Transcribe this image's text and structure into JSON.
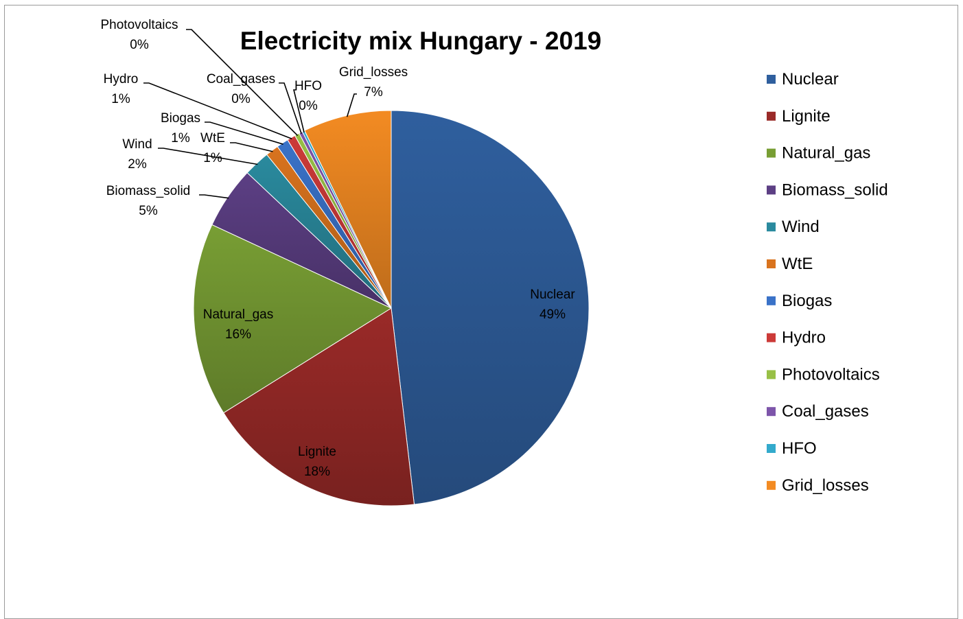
{
  "chart_data": {
    "type": "pie",
    "title": "Electricity mix Hungary - 2019",
    "legend_position": "right",
    "slices": [
      {
        "name": "Nuclear",
        "value": 49.3,
        "label": "49%",
        "color": "#2f5f9e"
      },
      {
        "name": "Lignite",
        "value": 18.4,
        "label": "18%",
        "color": "#9a2a28"
      },
      {
        "name": "Natural_gas",
        "value": 16.2,
        "label": "16%",
        "color": "#789e34"
      },
      {
        "name": "Biomass_solid",
        "value": 5.2,
        "label": "5%",
        "color": "#5c3f84"
      },
      {
        "name": "Wind",
        "value": 2.2,
        "label": "2%",
        "color": "#2a8a9e"
      },
      {
        "name": "WtE",
        "value": 1.1,
        "label": "1%",
        "color": "#d9731e"
      },
      {
        "name": "Biogas",
        "value": 1.0,
        "label": "1%",
        "color": "#3a72c8"
      },
      {
        "name": "Hydro",
        "value": 0.7,
        "label": "1%",
        "color": "#cc3a38"
      },
      {
        "name": "Photovoltaics",
        "value": 0.4,
        "label": "0%",
        "color": "#98c046"
      },
      {
        "name": "Coal_gases",
        "value": 0.3,
        "label": "0%",
        "color": "#7d55aa"
      },
      {
        "name": "HFO",
        "value": 0.2,
        "label": "0%",
        "color": "#33aacc"
      },
      {
        "name": "Grid_losses",
        "value": 7.4,
        "label": "7%",
        "color": "#f38b22"
      }
    ],
    "legend_order": [
      "Nuclear",
      "Lignite",
      "Natural_gas",
      "Biomass_solid",
      "Wind",
      "WtE",
      "Biogas",
      "Hydro",
      "Photovoltaics",
      "Coal_gases",
      "HFO",
      "Grid_losses"
    ]
  }
}
